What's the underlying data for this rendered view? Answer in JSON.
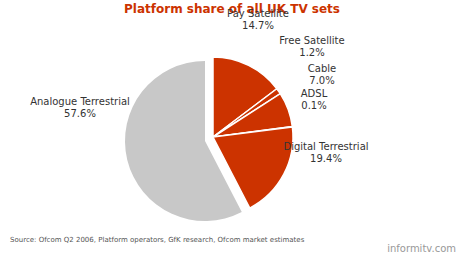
{
  "chart_data": {
    "type": "pie",
    "title": "Platform share of all UK TV sets",
    "categories": [
      "Pay Satellite",
      "Free Satellite",
      "Cable",
      "ADSL",
      "Digital Terrestrial",
      "Analogue Terrestrial"
    ],
    "values": [
      14.7,
      1.2,
      7.0,
      0.1,
      19.4,
      57.6
    ],
    "value_labels": [
      "14.7%",
      "1.2%",
      "7.0%",
      "0.1%",
      "19.4%",
      "57.6%"
    ],
    "colors": [
      "#cc3300",
      "#cc3300",
      "#cc3300",
      "#cc3300",
      "#cc3300",
      "#c8c8c8"
    ],
    "data_labels": true,
    "annotations": [
      "Source: Ofcom Q2 2006, Platform operators, GfK research, Ofcom market estimates",
      "informitv.com"
    ]
  }
}
